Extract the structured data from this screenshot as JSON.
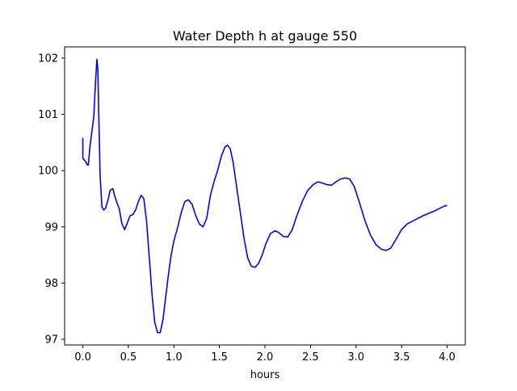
{
  "chart_data": {
    "type": "line",
    "title": "Water Depth h at gauge 550",
    "xlabel": "hours",
    "ylabel": "",
    "xlim": [
      -0.2,
      4.2
    ],
    "ylim": [
      96.9,
      102.2
    ],
    "xticks": [
      0.0,
      0.5,
      1.0,
      1.5,
      2.0,
      2.5,
      3.0,
      3.5,
      4.0
    ],
    "xtick_labels": [
      "0.0",
      "0.5",
      "1.0",
      "1.5",
      "2.0",
      "2.5",
      "3.0",
      "3.5",
      "4.0"
    ],
    "yticks": [
      97,
      98,
      99,
      100,
      101,
      102
    ],
    "ytick_labels": [
      "97",
      "98",
      "99",
      "100",
      "101",
      "102"
    ],
    "grid": false,
    "series_color": "#0000ff",
    "series": [
      {
        "name": "",
        "x": [
          0.0,
          0.0,
          0.01,
          0.03,
          0.05,
          0.06,
          0.08,
          0.1,
          0.12,
          0.14,
          0.155,
          0.165,
          0.175,
          0.19,
          0.21,
          0.23,
          0.25,
          0.28,
          0.3,
          0.33,
          0.35,
          0.37,
          0.4,
          0.43,
          0.46,
          0.5,
          0.52,
          0.55,
          0.58,
          0.61,
          0.64,
          0.67,
          0.7,
          0.73,
          0.76,
          0.79,
          0.82,
          0.85,
          0.88,
          0.91,
          0.94,
          0.97,
          1.0,
          1.04,
          1.08,
          1.12,
          1.16,
          1.2,
          1.24,
          1.28,
          1.32,
          1.36,
          1.4,
          1.44,
          1.48,
          1.52,
          1.56,
          1.59,
          1.62,
          1.65,
          1.69,
          1.73,
          1.77,
          1.81,
          1.85,
          1.89,
          1.93,
          1.97,
          2.01,
          2.06,
          2.11,
          2.15,
          2.2,
          2.25,
          2.3,
          2.35,
          2.41,
          2.47,
          2.53,
          2.58,
          2.63,
          2.68,
          2.73,
          2.78,
          2.83,
          2.88,
          2.93,
          2.98,
          3.04,
          3.1,
          3.16,
          3.22,
          3.28,
          3.33,
          3.38,
          3.44,
          3.5,
          3.56,
          3.62,
          3.68,
          3.74,
          3.8,
          3.86,
          3.92,
          3.97,
          4.0
        ],
        "y": [
          100.58,
          100.22,
          100.2,
          100.16,
          100.1,
          100.1,
          100.45,
          100.7,
          100.95,
          101.6,
          101.98,
          101.8,
          101.0,
          99.9,
          99.35,
          99.3,
          99.33,
          99.5,
          99.65,
          99.68,
          99.55,
          99.45,
          99.32,
          99.05,
          98.95,
          99.12,
          99.2,
          99.22,
          99.3,
          99.45,
          99.56,
          99.5,
          99.1,
          98.45,
          97.8,
          97.3,
          97.12,
          97.12,
          97.35,
          97.75,
          98.15,
          98.5,
          98.75,
          98.98,
          99.25,
          99.45,
          99.48,
          99.4,
          99.2,
          99.05,
          99.0,
          99.15,
          99.55,
          99.8,
          100.0,
          100.25,
          100.42,
          100.45,
          100.38,
          100.15,
          99.7,
          99.25,
          98.8,
          98.45,
          98.3,
          98.28,
          98.35,
          98.5,
          98.7,
          98.88,
          98.93,
          98.9,
          98.83,
          98.82,
          98.95,
          99.2,
          99.45,
          99.65,
          99.75,
          99.8,
          99.78,
          99.75,
          99.74,
          99.8,
          99.85,
          99.87,
          99.85,
          99.72,
          99.42,
          99.1,
          98.85,
          98.68,
          98.6,
          98.58,
          98.62,
          98.78,
          98.95,
          99.05,
          99.1,
          99.15,
          99.2,
          99.24,
          99.28,
          99.33,
          99.37,
          99.38
        ]
      }
    ]
  }
}
